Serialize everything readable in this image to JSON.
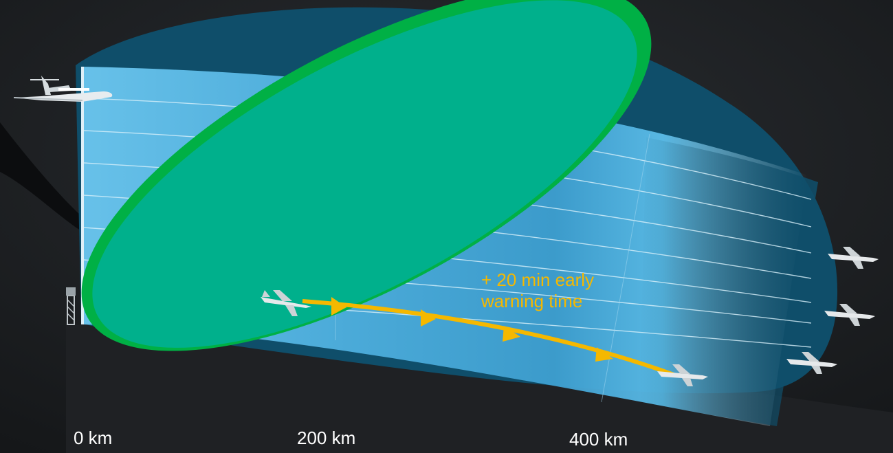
{
  "annotation": {
    "line1": "+ 20 min early",
    "line2": "warning time"
  },
  "distance_axis": {
    "labels": [
      "0 km",
      "200 km",
      "400 km"
    ]
  },
  "colors": {
    "background": "#1b1d20",
    "coverage_outer": "#0f4e6a",
    "coverage_panel": "#5ab8e4",
    "airborne_lobe": "#00b08c",
    "airborne_lobe_edge": "#00b045",
    "track": "#f5b800",
    "annotation_text": "#f5b800",
    "label_text": "#ffffff"
  },
  "icons": [
    "airborne-early-warning-jet-icon",
    "ground-radar-tower-icon",
    "fighter-jet-icon"
  ]
}
